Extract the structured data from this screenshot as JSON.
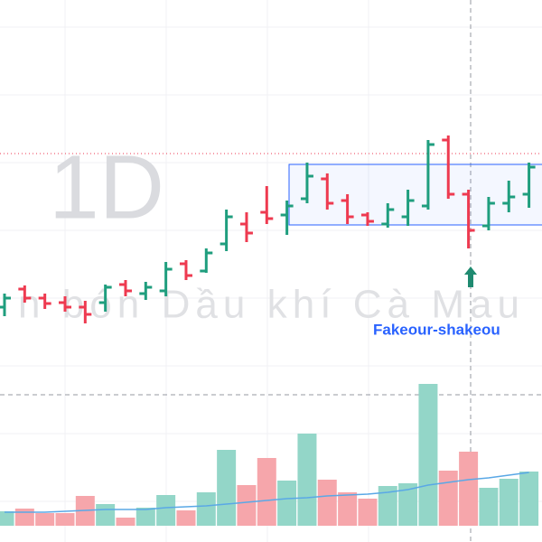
{
  "chart_data": {
    "type": "ohlc",
    "watermark": "1D",
    "watermark_subtitle": "n bón Dầu khí Cà Mau",
    "annotation": "Fakeour-shakeou",
    "up_color": "#1f9e7e",
    "down_color": "#ee3a50",
    "volume_up_color": "#93d6c8",
    "volume_down_color": "#f6a6ab",
    "volume_ma_color": "#5aa8e6",
    "ylim": [
      0,
      600
    ],
    "volume_ylim": [
      0,
      582
    ],
    "open": [
      260,
      280,
      270,
      265,
      260,
      265,
      285,
      275,
      278,
      308,
      300,
      330,
      352,
      365,
      362,
      380,
      402,
      378,
      362,
      352,
      360,
      372,
      445,
      385,
      350,
      375,
      385
    ],
    "high": [
      275,
      284,
      275,
      272,
      267,
      285,
      290,
      288,
      310,
      312,
      325,
      368,
      365,
      394,
      378,
      420,
      408,
      385,
      365,
      375,
      390,
      445,
      450,
      390,
      382,
      400,
      420
    ],
    "low": [
      250,
      265,
      258,
      255,
      242,
      255,
      272,
      268,
      272,
      290,
      298,
      322,
      332,
      352,
      340,
      375,
      368,
      352,
      350,
      348,
      350,
      368,
      380,
      325,
      345,
      365,
      370
    ],
    "close": [
      270,
      270,
      264,
      260,
      252,
      282,
      278,
      282,
      302,
      295,
      320,
      360,
      342,
      358,
      372,
      405,
      375,
      360,
      355,
      368,
      378,
      440,
      385,
      345,
      375,
      382,
      415
    ],
    "volume": [
      16,
      19,
      14,
      14,
      33,
      24,
      9,
      20,
      34,
      17,
      37,
      84,
      45,
      75,
      50,
      102,
      51,
      37,
      30,
      44,
      47,
      157,
      61,
      82,
      42,
      52,
      60
    ],
    "volume_ma": [
      15,
      15,
      15,
      16,
      17,
      18,
      18,
      18,
      20,
      21,
      22,
      24,
      26,
      28,
      30,
      31,
      33,
      34,
      35,
      37,
      40,
      45,
      48,
      51,
      53,
      56,
      59
    ]
  }
}
